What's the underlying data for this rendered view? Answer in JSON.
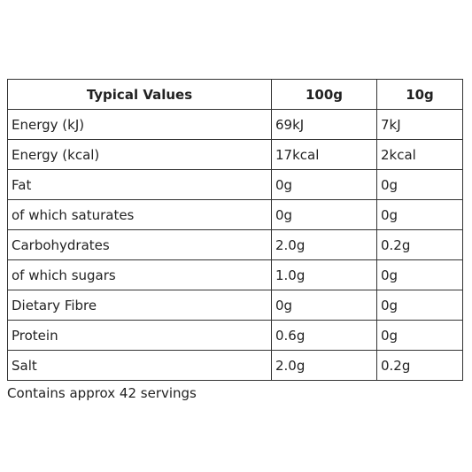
{
  "table": {
    "header": [
      "Typical Values",
      "100g",
      "10g"
    ],
    "rows": [
      [
        "Energy (kJ)",
        "69kJ",
        "7kJ"
      ],
      [
        "Energy (kcal)",
        "17kcal",
        "2kcal"
      ],
      [
        "Fat",
        "0g",
        "0g"
      ],
      [
        "of which saturates",
        "0g",
        "0g"
      ],
      [
        "Carbohydrates",
        "2.0g",
        "0.2g"
      ],
      [
        "of which sugars",
        "1.0g",
        "0g"
      ],
      [
        "Dietary Fibre",
        "0g",
        "0g"
      ],
      [
        "Protein",
        "0.6g",
        "0g"
      ],
      [
        "Salt",
        "2.0g",
        "0.2g"
      ]
    ]
  },
  "footer": "Contains approx 42 servings"
}
